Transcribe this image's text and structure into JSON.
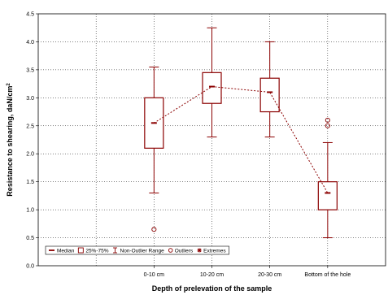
{
  "chart_data": {
    "type": "box",
    "xlabel": "Depth of prelevation of the sample",
    "ylabel_main": "Resistance to shearing, daN/cm",
    "ylabel_sup": "2",
    "ylim": [
      0,
      4.5
    ],
    "yticks": [
      "0.0",
      "0.5",
      "1.0",
      "1.5",
      "2.0",
      "2.5",
      "3.0",
      "3.5",
      "4.0",
      "4.5"
    ],
    "grid": "dotted",
    "categories": [
      "0-10 cm",
      "10-20 cm",
      "20-30 cm",
      "Bottom of the hole"
    ],
    "boxes": [
      {
        "category": "0-10 cm",
        "median": 2.55,
        "q1": 2.1,
        "q3": 3.0,
        "whisker_low": 1.3,
        "whisker_high": 3.55,
        "outliers": [
          0.65
        ]
      },
      {
        "category": "10-20 cm",
        "median": 3.2,
        "q1": 2.9,
        "q3": 3.45,
        "whisker_low": 2.3,
        "whisker_high": 4.25,
        "outliers": []
      },
      {
        "category": "20-30 cm",
        "median": 3.1,
        "q1": 2.75,
        "q3": 3.35,
        "whisker_low": 2.3,
        "whisker_high": 4.0,
        "outliers": []
      },
      {
        "category": "Bottom of the hole",
        "median": 1.3,
        "q1": 1.0,
        "q3": 1.5,
        "whisker_low": 0.5,
        "whisker_high": 2.2,
        "outliers": [
          2.5,
          2.6
        ]
      }
    ],
    "median_line": "dotted",
    "legend": {
      "placement": "bottom-left",
      "items": [
        "Median",
        "25%-75%",
        "Non-Outlier Range",
        "Outliers",
        "Extremes"
      ]
    },
    "colors": {
      "series": "#8b0000",
      "frame": "#000000",
      "grid": "#000000"
    }
  }
}
